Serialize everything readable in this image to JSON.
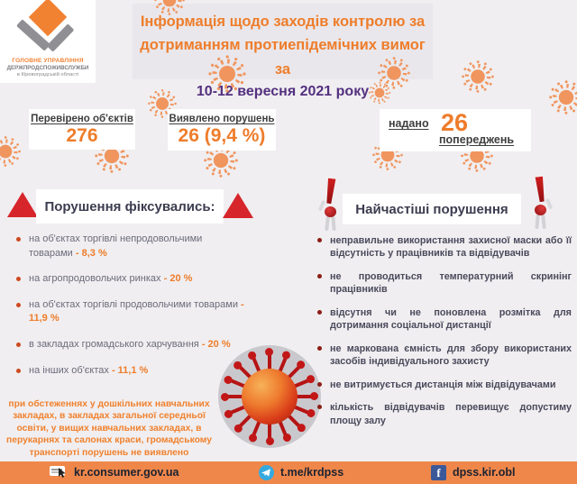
{
  "logo": {
    "line1": "ГОЛОВНЕ УПРАВЛІННЯ",
    "line2": "ДЕРЖПРОДСПОЖИВСЛУЖБИ",
    "line3": "в Кіровоградській області"
  },
  "title": {
    "line1": "Інформація щодо заходів контролю за",
    "line2": "дотриманням протиепідемічних вимог за",
    "line3": "10-12 вересня 2021 року"
  },
  "stats": {
    "checked_label": "Перевірено об'єктів",
    "checked_value": "276",
    "violations_label": "Виявлено порушень",
    "violations_value": "26  (9,4 %)",
    "warnings_prefix": "надано",
    "warnings_value": "26",
    "warnings_suffix": "попереджень"
  },
  "violations_fixed": {
    "title": "Порушення фіксувались:",
    "items": [
      {
        "text": "на об'єктах торгівлі непродовольчими товарами",
        "value": "- 8,3 %"
      },
      {
        "text": "на агропродовольчих ринках",
        "value": "- 20 %"
      },
      {
        "text": "на об'єктах торгівлі продовольчими товарами",
        "value": "- 11,9 %"
      },
      {
        "text": "в закладах громадського харчування",
        "value": "- 20 %"
      },
      {
        "text": "на інших об'єктах",
        "value": "- 11,1 %"
      }
    ],
    "note": "при обстеженнях у дошкільних навчальних закладах, в закладах загальної середньої освіти, у вищих навчальних закладах, в перукарнях та салонах краси, громадському транспорті порушень не виявлено"
  },
  "frequent_violations": {
    "title": "Найчастіші порушення",
    "items": [
      "неправильне використання захисної маски або її відсутність у працівників та відвідувачів",
      "не проводиться температурний скринінг працівників",
      "відсутня чи не поновлена розмітка для дотримання соціальної дистанції",
      "не маркована ємність для збору використаних засобів індивідуального захисту",
      "не витримується дистанція між відвідувачами",
      "кількість відвідувачів перевищує допустиму площу залу"
    ]
  },
  "footer": {
    "website": "kr.consumer.gov.ua",
    "telegram": "t.me/krdpss",
    "facebook": "dpss.kir.obl"
  },
  "icons": {
    "virus": "virus-icon",
    "link": "link-icon",
    "telegram": "telegram-icon",
    "facebook": "facebook-icon",
    "warning_triangle": "warning-triangle-icon",
    "exclamation_figurine": "exclamation-figurine-icon"
  },
  "colors": {
    "accent_orange": "#EE7D2B",
    "deep_purple": "#53307F",
    "alert_red": "#D6252B",
    "footer_orange": "#F0874A"
  }
}
